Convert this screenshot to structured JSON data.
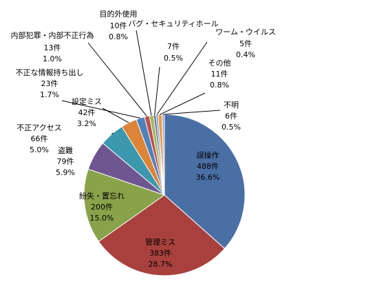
{
  "chart_data": {
    "type": "pie",
    "title": "",
    "start_angle_deg": 0,
    "direction": "clockwise",
    "slices": [
      {
        "label": "誤操作",
        "count": "488件",
        "percent": "36.6%",
        "value": 36.6,
        "color": "#4A6FA5"
      },
      {
        "label": "管理ミス",
        "count": "383件",
        "percent": "28.7%",
        "value": 28.7,
        "color": "#A8413D"
      },
      {
        "label": "紛失・置忘れ",
        "count": "200件",
        "percent": "15.0%",
        "value": 15.0,
        "color": "#89A34A"
      },
      {
        "label": "盗難",
        "count": "79件",
        "percent": "5.9%",
        "value": 5.9,
        "color": "#6E5690"
      },
      {
        "label": "不正アクセス",
        "count": "66件",
        "percent": "5.0%",
        "value": 5.0,
        "color": "#3C98AE"
      },
      {
        "label": "設定ミス",
        "count": "42件",
        "percent": "3.2%",
        "value": 3.2,
        "color": "#DD8438"
      },
      {
        "label": "不正な情報持ち出し",
        "count": "23件",
        "percent": "1.7%",
        "value": 1.7,
        "color": "#4F81BD"
      },
      {
        "label": "内部犯罪・内部不正行為",
        "count": "13件",
        "percent": "1.0%",
        "value": 1.0,
        "color": "#C0504D"
      },
      {
        "label": "目的外使用",
        "count": "10件",
        "percent": "0.8%",
        "value": 0.8,
        "color": "#9BBB59"
      },
      {
        "label": "バグ・セキュリティホール",
        "count": "7件",
        "percent": "0.5%",
        "value": 0.5,
        "color": "#8064A2"
      },
      {
        "label": "ワーム・ウイルス",
        "count": "5件",
        "percent": "0.4%",
        "value": 0.4,
        "color": "#4BACC6"
      },
      {
        "label": "その他",
        "count": "11件",
        "percent": "0.8%",
        "value": 0.8,
        "color": "#F79646"
      },
      {
        "label": "不明",
        "count": "6件",
        "percent": "0.5%",
        "value": 0.5,
        "color": "#95B3D7"
      }
    ]
  }
}
